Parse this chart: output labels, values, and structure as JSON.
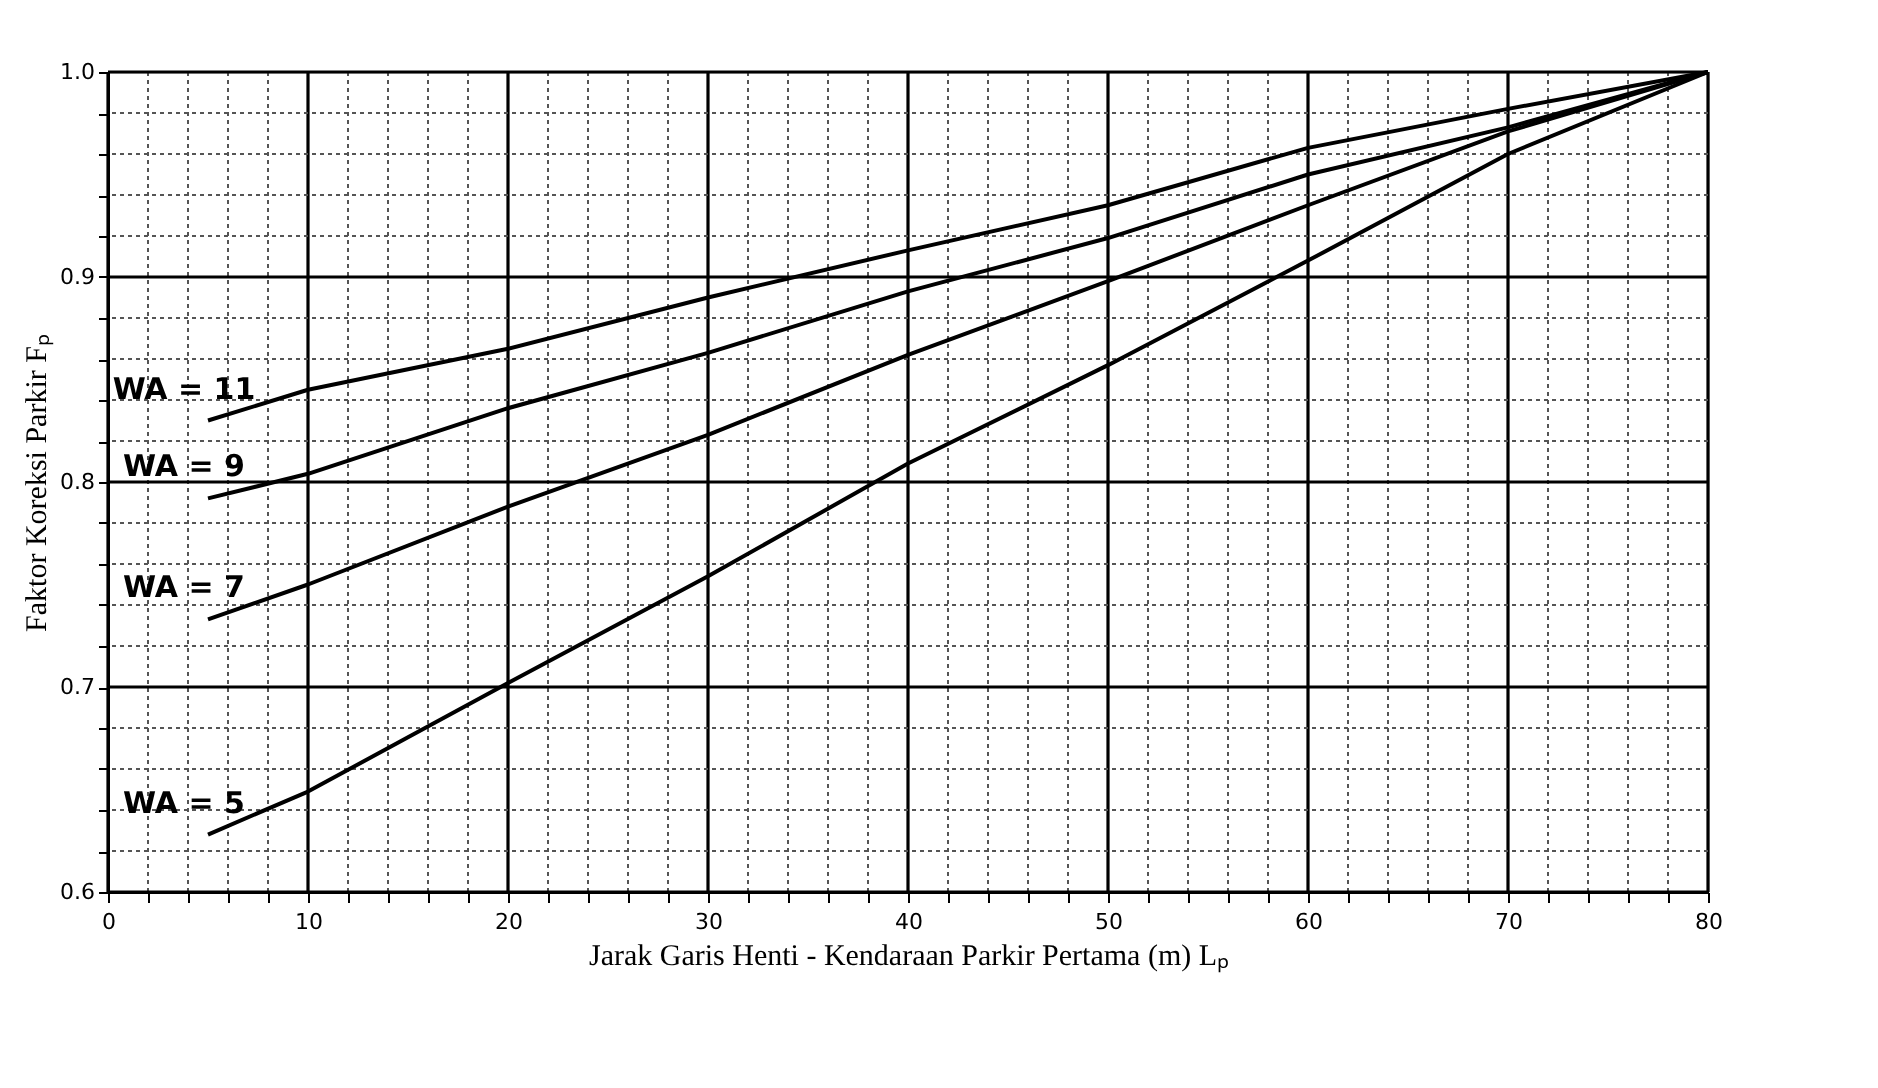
{
  "chart_data": {
    "type": "line",
    "xlabel": "Jarak Garis Henti - Kendaraan Parkir Pertama (m) Lₚ",
    "ylabel": "Faktor Koreksi Parkir Fₚ",
    "x": [
      5,
      10,
      20,
      30,
      40,
      50,
      60,
      70,
      80
    ],
    "series": [
      {
        "name": "WA = 11",
        "color": "#000000",
        "values": [
          0.83,
          0.845,
          0.865,
          0.89,
          0.913,
          0.935,
          0.963,
          0.982,
          1.0
        ]
      },
      {
        "name": "WA = 9",
        "color": "#000000",
        "values": [
          0.792,
          0.804,
          0.836,
          0.863,
          0.893,
          0.919,
          0.95,
          0.973,
          1.0
        ]
      },
      {
        "name": "WA = 7",
        "color": "#000000",
        "values": [
          0.733,
          0.75,
          0.788,
          0.823,
          0.862,
          0.898,
          0.935,
          0.971,
          1.0
        ]
      },
      {
        "name": "WA = 5",
        "color": "#000000",
        "values": [
          0.628,
          0.649,
          0.702,
          0.754,
          0.809,
          0.857,
          0.908,
          0.96,
          1.0
        ]
      }
    ],
    "xlim": [
      0,
      80
    ],
    "ylim": [
      0.6,
      1.0
    ],
    "xticks": [
      0,
      {
        "value": 2,
        "label": null
      },
      {
        "value": 4,
        "label": null
      },
      {
        "value": 6,
        "label": null
      },
      {
        "value": 8,
        "label": null
      },
      10,
      {
        "value": 12,
        "label": null
      },
      {
        "value": 14,
        "label": null
      },
      {
        "value": 16,
        "label": null
      },
      {
        "value": 18,
        "label": null
      },
      20,
      {
        "value": 22,
        "label": null
      },
      {
        "value": 24,
        "label": null
      },
      {
        "value": 26,
        "label": null
      },
      {
        "value": 28,
        "label": null
      },
      30,
      {
        "value": 32,
        "label": null
      },
      {
        "value": 34,
        "label": null
      },
      {
        "value": 36,
        "label": null
      },
      {
        "value": 38,
        "label": null
      },
      40,
      {
        "value": 42,
        "label": null
      },
      {
        "value": 44,
        "label": null
      },
      {
        "value": 46,
        "label": null
      },
      {
        "value": 48,
        "label": null
      },
      50,
      {
        "value": 52,
        "label": null
      },
      {
        "value": 54,
        "label": null
      },
      {
        "value": 56,
        "label": null
      },
      {
        "value": 58,
        "label": null
      },
      60,
      {
        "value": 62,
        "label": null
      },
      {
        "value": 64,
        "label": null
      },
      {
        "value": 66,
        "label": null
      },
      {
        "value": 68,
        "label": null
      },
      70,
      {
        "value": 72,
        "label": null
      },
      {
        "value": 74,
        "label": null
      },
      {
        "value": 76,
        "label": null
      },
      {
        "value": 78,
        "label": null
      },
      80
    ],
    "yticks": [
      0.6,
      {
        "value": 0.62,
        "label": null
      },
      {
        "value": 0.64,
        "label": null
      },
      {
        "value": 0.66,
        "label": null
      },
      {
        "value": 0.68,
        "label": null
      },
      0.7,
      {
        "value": 0.72,
        "label": null
      },
      {
        "value": 0.74,
        "label": null
      },
      {
        "value": 0.76,
        "label": null
      },
      {
        "value": 0.78,
        "label": null
      },
      0.8,
      {
        "value": 0.82,
        "label": null
      },
      {
        "value": 0.84,
        "label": null
      },
      {
        "value": 0.86,
        "label": null
      },
      {
        "value": 0.88,
        "label": null
      },
      0.9,
      {
        "value": 0.92,
        "label": null
      },
      {
        "value": 0.94,
        "label": null
      },
      {
        "value": 0.96,
        "label": null
      },
      {
        "value": 0.98,
        "label": null
      },
      {
        "value": 1.0,
        "label": "1.0"
      }
    ],
    "grid": true,
    "marker": "none",
    "line_style": "solid"
  }
}
